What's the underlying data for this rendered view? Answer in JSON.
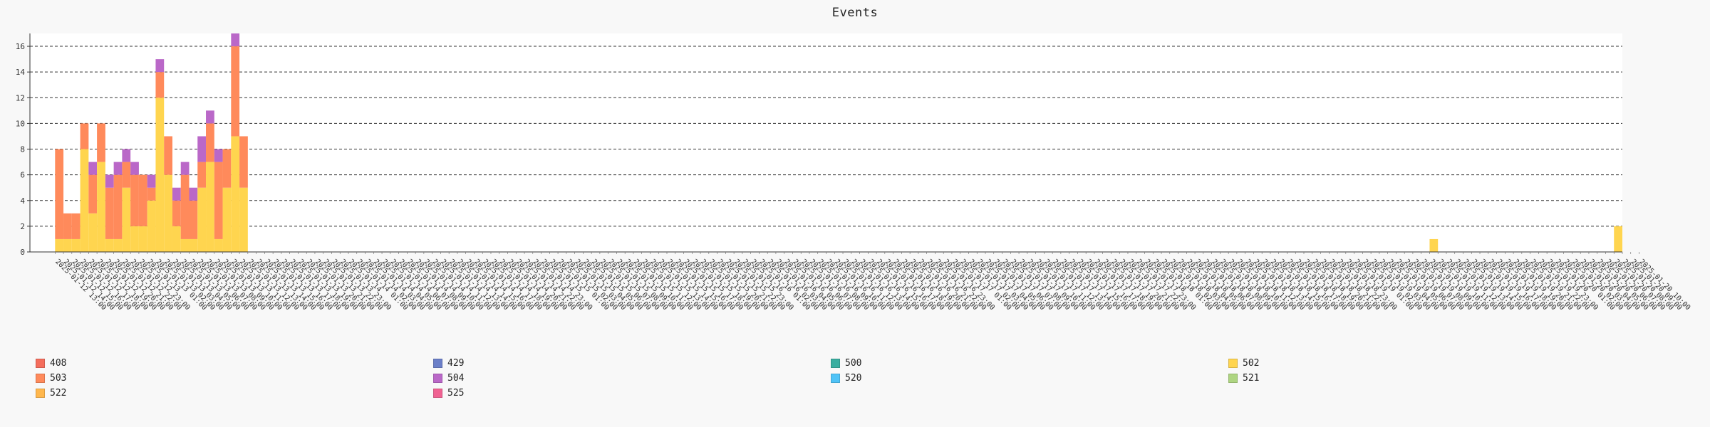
{
  "chart_data": {
    "type": "bar",
    "stacked": true,
    "title": "Events",
    "ylim": [
      0,
      17
    ],
    "yticks": [
      0,
      2,
      4,
      6,
      8,
      10,
      12,
      14,
      16
    ],
    "grid": "horizontal dashed",
    "legend_position": "bottom",
    "x_start": "2025-01-12 13:00",
    "bin_hours": 1,
    "x_tick_labels": [
      "2025-01-12 13:00",
      "2025-01-13",
      "2025-01-14",
      "2025-01-15",
      "2025-01-16",
      "2025-01-17",
      "2025-01-18",
      "2025-01-19",
      "2025-01-20"
    ],
    "series": [
      {
        "name": "408",
        "color": "#f46d5c"
      },
      {
        "name": "429",
        "color": "#6b7fc8"
      },
      {
        "name": "500",
        "color": "#3aaea0"
      },
      {
        "name": "502",
        "color": "#ffd54f"
      },
      {
        "name": "503",
        "color": "#ff8a5b"
      },
      {
        "name": "504",
        "color": "#ba68c8"
      },
      {
        "name": "520",
        "color": "#4fc3f7"
      },
      {
        "name": "521",
        "color": "#aed581"
      },
      {
        "name": "522",
        "color": "#ffb74d"
      },
      {
        "name": "525",
        "color": "#f06292"
      }
    ],
    "data": [
      {
        "x": "2025-01-12 13:00",
        "values": {
          "502": 1,
          "503": 7
        }
      },
      {
        "x": "2025-01-12 14:00",
        "values": {
          "502": 1,
          "503": 2
        }
      },
      {
        "x": "2025-01-12 15:00",
        "values": {
          "502": 1,
          "503": 2
        }
      },
      {
        "x": "2025-01-12 16:00",
        "values": {
          "502": 8,
          "503": 2
        }
      },
      {
        "x": "2025-01-12 17:00",
        "values": {
          "502": 3,
          "503": 3,
          "504": 1
        }
      },
      {
        "x": "2025-01-12 18:00",
        "values": {
          "502": 7,
          "503": 3
        }
      },
      {
        "x": "2025-01-12 19:00",
        "values": {
          "502": 1,
          "503": 4,
          "504": 1
        }
      },
      {
        "x": "2025-01-12 20:00",
        "values": {
          "502": 1,
          "503": 5,
          "504": 1
        }
      },
      {
        "x": "2025-01-12 21:00",
        "values": {
          "502": 5,
          "503": 2,
          "504": 1
        }
      },
      {
        "x": "2025-01-12 22:00",
        "values": {
          "502": 2,
          "503": 4,
          "504": 1
        }
      },
      {
        "x": "2025-01-12 23:00",
        "values": {
          "502": 2,
          "503": 4
        }
      },
      {
        "x": "2025-01-13 00:00",
        "values": {
          "502": 4,
          "503": 1,
          "504": 1
        }
      },
      {
        "x": "2025-01-13 01:00",
        "values": {
          "502": 12,
          "503": 2,
          "504": 1
        }
      },
      {
        "x": "2025-01-13 02:00",
        "values": {
          "502": 6,
          "503": 3
        }
      },
      {
        "x": "2025-01-13 03:00",
        "values": {
          "502": 2,
          "503": 2,
          "504": 1
        }
      },
      {
        "x": "2025-01-13 04:00",
        "values": {
          "502": 1,
          "503": 5,
          "504": 1
        }
      },
      {
        "x": "2025-01-13 05:00",
        "values": {
          "502": 1,
          "503": 3,
          "504": 1
        }
      },
      {
        "x": "2025-01-13 06:00",
        "values": {
          "502": 5,
          "503": 2,
          "504": 2
        }
      },
      {
        "x": "2025-01-13 07:00",
        "values": {
          "502": 7,
          "503": 3,
          "504": 1
        }
      },
      {
        "x": "2025-01-13 08:00",
        "values": {
          "502": 1,
          "503": 6,
          "504": 1
        }
      },
      {
        "x": "2025-01-13 09:00",
        "values": {
          "502": 5,
          "503": 3
        }
      },
      {
        "x": "2025-01-13 10:00",
        "values": {
          "502": 9,
          "503": 7,
          "504": 1
        }
      },
      {
        "x": "2025-01-13 11:00",
        "values": {
          "502": 5,
          "503": 4
        }
      },
      {
        "x": "2025-01-19 09:00",
        "values": {
          "502": 1
        }
      },
      {
        "x": "2025-01-20 07:00",
        "values": {
          "502": 2
        }
      }
    ]
  }
}
